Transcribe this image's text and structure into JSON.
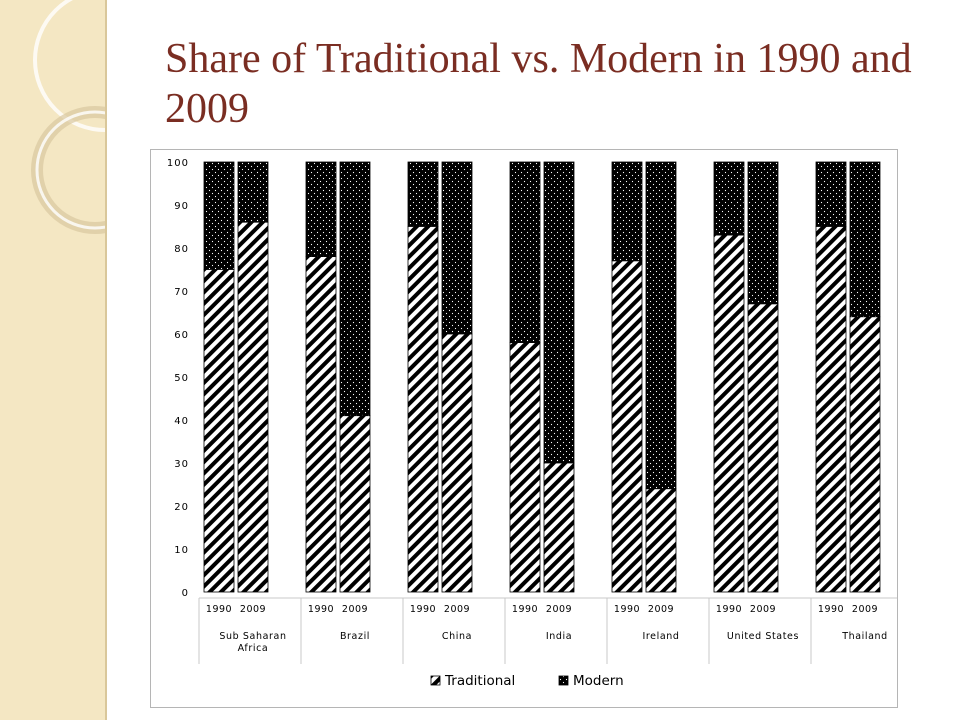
{
  "title": "Share of Traditional vs. Modern in 1990 and 2009",
  "chart_data": {
    "type": "bar",
    "stacked": true,
    "percent": true,
    "ylim": [
      0,
      100
    ],
    "yticks": [
      0,
      10,
      20,
      30,
      40,
      50,
      60,
      70,
      80,
      90,
      100
    ],
    "grid": false,
    "legend_position": "bottom",
    "groups": [
      {
        "label": "Sub Saharan Africa",
        "label_lines": [
          "Sub Saharan",
          "Africa"
        ],
        "years": [
          "1990",
          "2009"
        ],
        "traditional": [
          75,
          86
        ]
      },
      {
        "label": "Brazil",
        "label_lines": [
          "Brazil"
        ],
        "years": [
          "1990",
          "2009"
        ],
        "traditional": [
          78,
          41
        ]
      },
      {
        "label": "China",
        "label_lines": [
          "China"
        ],
        "years": [
          "1990",
          "2009"
        ],
        "traditional": [
          85,
          60
        ]
      },
      {
        "label": "India",
        "label_lines": [
          "India"
        ],
        "years": [
          "1990",
          "2009"
        ],
        "traditional": [
          58,
          30
        ]
      },
      {
        "label": "Ireland",
        "label_lines": [
          "Ireland"
        ],
        "years": [
          "1990",
          "2009"
        ],
        "traditional": [
          77,
          24
        ]
      },
      {
        "label": "United States",
        "label_lines": [
          "United States"
        ],
        "years": [
          "1990",
          "2009"
        ],
        "traditional": [
          83,
          67
        ]
      },
      {
        "label": "Thailand",
        "label_lines": [
          "Thailand"
        ],
        "years": [
          "1990",
          "2009"
        ],
        "traditional": [
          85,
          64
        ]
      }
    ],
    "series": [
      {
        "name": "Traditional",
        "pattern": "diagonal-stripes",
        "color": "#000000"
      },
      {
        "name": "Modern",
        "pattern": "black-dotted",
        "color": "#000000"
      }
    ]
  }
}
